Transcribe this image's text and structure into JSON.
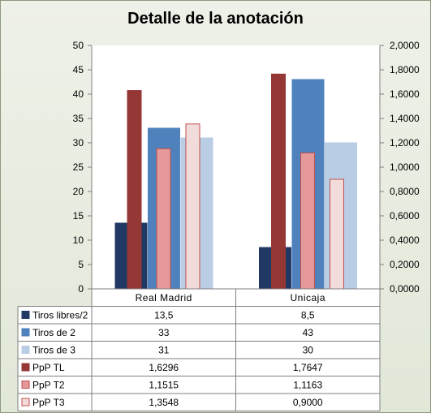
{
  "chart_data": {
    "type": "bar",
    "title": "Detalle de la anotación",
    "categories": [
      "Real Madrid",
      "Unicaja"
    ],
    "primary_axis": {
      "ylim": [
        0,
        50
      ],
      "ticks": [
        "0",
        "5",
        "10",
        "15",
        "20",
        "25",
        "30",
        "35",
        "40",
        "45",
        "50"
      ]
    },
    "secondary_axis": {
      "ylim": [
        0,
        2
      ],
      "ticks": [
        "0,0000",
        "0,2000",
        "0,4000",
        "0,6000",
        "0,8000",
        "1,0000",
        "1,2000",
        "1,4000",
        "1,6000",
        "1,8000",
        "2,0000"
      ]
    },
    "series": [
      {
        "name": "Tiros libres/2",
        "axis": "primary",
        "values": [
          13.5,
          8.5
        ],
        "labels": [
          "13,5",
          "8,5"
        ],
        "color": "#1f3864",
        "edge": "#1f3864"
      },
      {
        "name": "Tiros de 2",
        "axis": "primary",
        "values": [
          33,
          43
        ],
        "labels": [
          "33",
          "43"
        ],
        "color": "#4f81bd",
        "edge": "#4f81bd"
      },
      {
        "name": "Tiros de 3",
        "axis": "primary",
        "values": [
          31,
          30
        ],
        "labels": [
          "31",
          "30"
        ],
        "color": "#b9cde5",
        "edge": "#b9cde5"
      },
      {
        "name": "PpP TL",
        "axis": "secondary",
        "values": [
          1.6296,
          1.7647
        ],
        "labels": [
          "1,6296",
          "1,7647"
        ],
        "color": "#953735",
        "edge": "#953735"
      },
      {
        "name": "PpP T2",
        "axis": "secondary",
        "values": [
          1.1515,
          1.1163
        ],
        "labels": [
          "1,1515",
          "1,1163"
        ],
        "color": "#e6999a",
        "edge": "#c0504d"
      },
      {
        "name": "PpP T3",
        "axis": "secondary",
        "values": [
          1.3548,
          0.9
        ],
        "labels": [
          "1,3548",
          "0,9000"
        ],
        "color": "#f2dcdb",
        "edge": "#c0504d"
      }
    ],
    "legend": "data-table",
    "grid": false
  }
}
